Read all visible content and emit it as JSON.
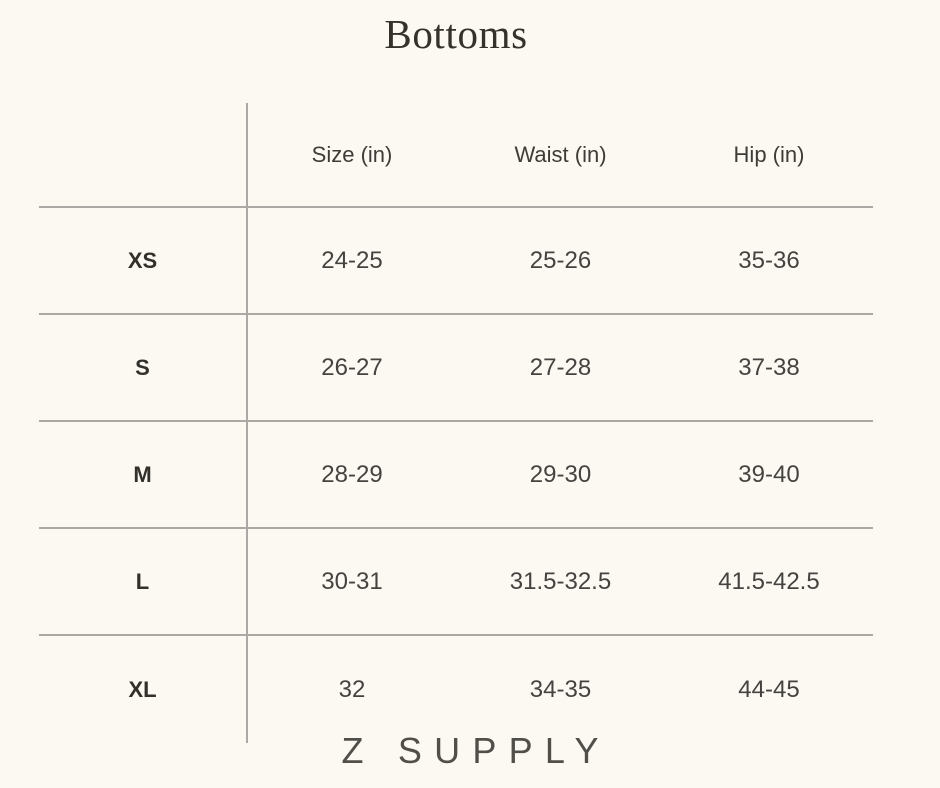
{
  "page": {
    "title": "Bottoms",
    "brand_logo": "Z SUPPLY"
  },
  "colors": {
    "background": "#fcf9f3",
    "rule_line": "#aba9a5",
    "title_text": "#35322c",
    "header_text": "#3e3c37",
    "cell_text": "#454340",
    "label_text": "#32302b",
    "logo_text": "#514f4a"
  },
  "chart_data": {
    "type": "table",
    "title": "Bottoms",
    "columns": [
      "",
      "Size (in)",
      "Waist (in)",
      "Hip (in)"
    ],
    "rows": [
      {
        "label": "XS",
        "size": "24-25",
        "waist": "25-26",
        "hip": "35-36"
      },
      {
        "label": "S",
        "size": "26-27",
        "waist": "27-28",
        "hip": "37-38"
      },
      {
        "label": "M",
        "size": "28-29",
        "waist": "29-30",
        "hip": "39-40"
      },
      {
        "label": "L",
        "size": "30-31",
        "waist": "31.5-32.5",
        "hip": "41.5-42.5"
      },
      {
        "label": "XL",
        "size": "32",
        "waist": "34-35",
        "hip": "44-45"
      }
    ],
    "layout": {
      "grid": "horizontal row separators, vertical divider after label column, no outer border, no border under last row",
      "footer_brand": "Z SUPPLY"
    }
  }
}
